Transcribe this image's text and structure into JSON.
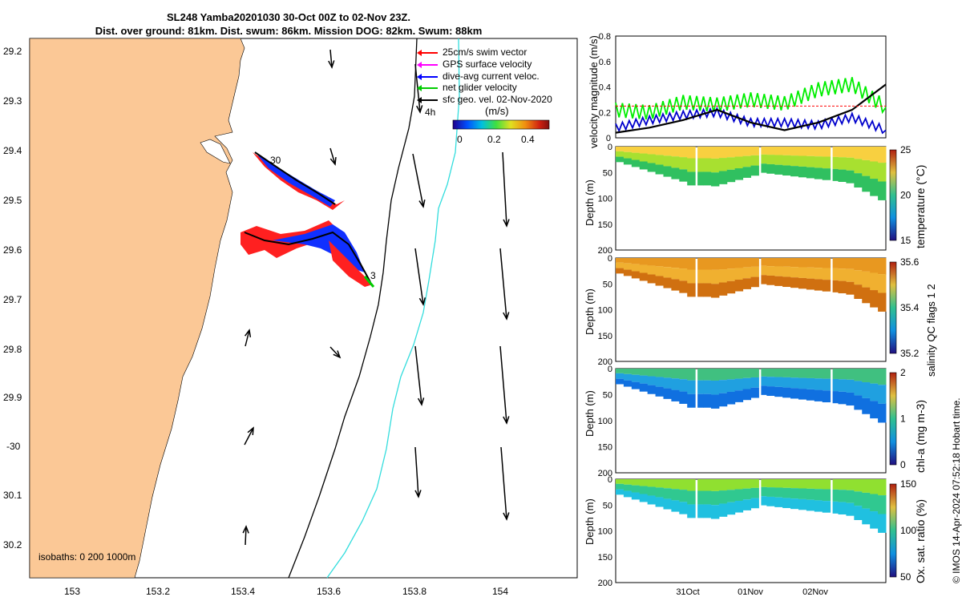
{
  "title": {
    "line1": "SL248 Yamba20201030 30-Oct 00Z to 02-Nov 23Z.",
    "line2": "Dist. over ground: 81km. Dist. swum: 86km. Mission DOG: 82km. Swum: 88km"
  },
  "map": {
    "lat_ticks": [
      "29.2",
      "29.3",
      "29.4",
      "29.5",
      "29.6",
      "29.7",
      "29.8",
      "29.9",
      "-30",
      "30.1",
      "30.2"
    ],
    "lon_ticks": [
      "153",
      "153.2",
      "153.4",
      "153.6",
      "153.8",
      "154"
    ],
    "legend": [
      {
        "label": "25cm/s swim vector",
        "color": "#ff0000"
      },
      {
        "label": "GPS surface velocity",
        "color": "#ff00ff"
      },
      {
        "label": "dive-avg current veloc.",
        "color": "#0000ff"
      },
      {
        "label": "net glider velocity",
        "color": "#00cc00"
      },
      {
        "label": "sfc geo. vel. 02-Nov-2020",
        "color": "#000000"
      }
    ],
    "colorbar_title": "(m/s)",
    "colorbar_ticks": [
      "0",
      "0.2",
      "0.4"
    ],
    "track_labels": {
      "start": "30",
      "end": "3",
      "hours": "4h"
    },
    "isobath_label": "isobaths: 0   200  1000m",
    "colors": {
      "land": "#fbc896",
      "isobath_200": "#000000",
      "isobath_1000": "#33dddd"
    }
  },
  "chart_data": [
    {
      "type": "line",
      "ylabel": "velocity magnitude (m/s)",
      "ylim": [
        0,
        0.8
      ],
      "yticks": [
        "0",
        "0.2",
        "0.4",
        "0.6",
        "0.8"
      ],
      "x": [
        0,
        0.5,
        1,
        1.5,
        2,
        2.5,
        3,
        3.5,
        4
      ],
      "series": [
        {
          "color": "#00ee00",
          "values": [
            0.22,
            0.2,
            0.28,
            0.26,
            0.3,
            0.27,
            0.38,
            0.42,
            0.24
          ]
        },
        {
          "color": "#0000cc",
          "values": [
            0.08,
            0.14,
            0.18,
            0.2,
            0.12,
            0.12,
            0.1,
            0.16,
            0.06
          ]
        },
        {
          "color": "#000000",
          "values": [
            0.04,
            0.08,
            0.14,
            0.22,
            0.12,
            0.06,
            0.12,
            0.22,
            0.42
          ]
        },
        {
          "color": "#ff0000",
          "values": [
            0.25,
            0.25,
            0.25,
            0.25,
            0.25,
            0.25,
            0.25,
            0.25,
            0.25
          ]
        }
      ]
    },
    {
      "type": "heatmap",
      "ylabel": "Depth (m)",
      "clabel": "temperature (°C)",
      "yticks": [
        "0",
        "50",
        "100",
        "150",
        "200"
      ],
      "cticks": [
        "25",
        "20",
        "15"
      ],
      "colors": [
        "#f8d040",
        "#a8e030",
        "#30c060"
      ]
    },
    {
      "type": "heatmap",
      "ylabel": "Depth (m)",
      "clabel": "salinity",
      "yticks": [
        "0",
        "50",
        "100",
        "150",
        "200"
      ],
      "cticks": [
        "35.6",
        "35.4",
        "35.2"
      ],
      "colors": [
        "#e89820",
        "#f0b030",
        "#d07010"
      ]
    },
    {
      "type": "heatmap",
      "ylabel": "Depth (m)",
      "clabel": "chl-a (mg m-3)",
      "yticks": [
        "0",
        "50",
        "100",
        "150",
        "200"
      ],
      "cticks": [
        "2",
        "1",
        "0"
      ],
      "colors": [
        "#40c080",
        "#20a0e0",
        "#1070e0"
      ]
    },
    {
      "type": "heatmap",
      "ylabel": "Depth (m)",
      "clabel": "Ox. sat. ratio (%)",
      "yticks": [
        "0",
        "50",
        "100",
        "150",
        "200"
      ],
      "cticks": [
        "150",
        "100",
        "50"
      ],
      "colors": [
        "#90e030",
        "#30c890",
        "#20c0e0"
      ]
    }
  ],
  "time_ticks": [
    "31Oct",
    "01Nov",
    "02Nov"
  ],
  "qc_note": "salinity   QC flags 1  2",
  "footer": "© IMOS 14-Apr-2024 07:52:18 Hobart time."
}
